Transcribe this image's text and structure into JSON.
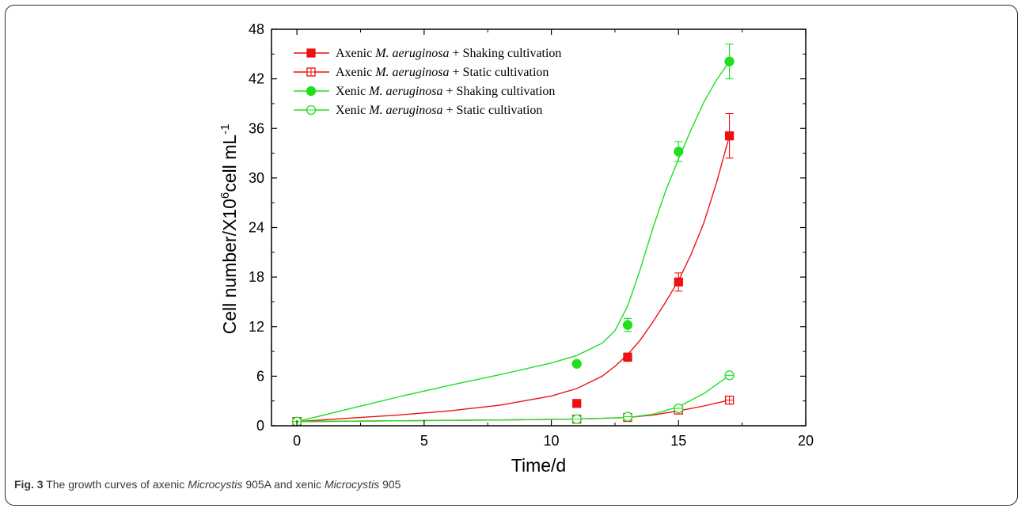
{
  "caption": {
    "fig_label": "Fig. 3",
    "text_1": "The growth curves of axenic",
    "italic_1": "Microcystis",
    "text_2": "905A and xenic",
    "italic_2": "Microcystis",
    "text_3": "905"
  },
  "chart_data": {
    "type": "scatter",
    "xlabel": "Time/d",
    "ylabel": "Cell number/X10",
    "ylabel_sup1": "6",
    "ylabel_unit": "cell mL",
    "ylabel_sup2": "-1",
    "xlim": [
      -1,
      20
    ],
    "ylim": [
      0,
      48
    ],
    "xticks": [
      0,
      5,
      10,
      15,
      20
    ],
    "yticks": [
      0,
      6,
      12,
      18,
      24,
      30,
      36,
      42,
      48
    ],
    "grid": false,
    "legend_position": "top-left",
    "series": [
      {
        "name_prefix": "Axenic ",
        "name_italic": "M. aeruginosa",
        "name_suffix": " + Shaking cultivation",
        "color": "#ee1111",
        "marker": "square-filled",
        "x": [
          0,
          11,
          13,
          15,
          17
        ],
        "y": [
          0.5,
          2.7,
          8.3,
          17.4,
          35.1
        ],
        "error": [
          0.1,
          0.2,
          0.5,
          1.1,
          2.7
        ],
        "curve": [
          [
            0,
            0.5
          ],
          [
            2,
            0.9
          ],
          [
            4,
            1.3
          ],
          [
            6,
            1.8
          ],
          [
            8,
            2.5
          ],
          [
            10,
            3.6
          ],
          [
            11,
            4.5
          ],
          [
            12,
            6.0
          ],
          [
            12.5,
            7.2
          ],
          [
            13,
            8.6
          ],
          [
            13.5,
            10.4
          ],
          [
            14,
            12.6
          ],
          [
            14.5,
            15.0
          ],
          [
            15,
            17.6
          ],
          [
            15.5,
            20.8
          ],
          [
            16,
            24.6
          ],
          [
            16.5,
            29.5
          ],
          [
            17,
            35.1
          ]
        ]
      },
      {
        "name_prefix": "Axenic ",
        "name_italic": "M. aeruginosa",
        "name_suffix": " + Static cultivation",
        "color": "#ee1111",
        "marker": "square-open",
        "x": [
          0,
          11,
          13,
          15,
          17
        ],
        "y": [
          0.5,
          0.8,
          1.0,
          1.9,
          3.1
        ],
        "error": [
          0.1,
          0.1,
          0.1,
          0.2,
          0.3
        ],
        "curve": [
          [
            0,
            0.5
          ],
          [
            4,
            0.6
          ],
          [
            8,
            0.7
          ],
          [
            11,
            0.8
          ],
          [
            13,
            1.0
          ],
          [
            14,
            1.3
          ],
          [
            15,
            1.8
          ],
          [
            16,
            2.4
          ],
          [
            17,
            3.1
          ]
        ]
      },
      {
        "name_prefix": "Xenic ",
        "name_italic": "M. aeruginosa",
        "name_suffix": " + Shaking cultivation",
        "color": "#1ee01e",
        "marker": "circle-filled",
        "x": [
          0,
          11,
          13,
          15,
          17
        ],
        "y": [
          0.5,
          7.5,
          12.2,
          33.2,
          44.1
        ],
        "error": [
          0.1,
          0.2,
          0.8,
          1.2,
          2.1
        ],
        "curve": [
          [
            0,
            0.5
          ],
          [
            2,
            2.0
          ],
          [
            4,
            3.5
          ],
          [
            6,
            4.9
          ],
          [
            8,
            6.2
          ],
          [
            10,
            7.6
          ],
          [
            11,
            8.5
          ],
          [
            12,
            10.0
          ],
          [
            12.5,
            11.5
          ],
          [
            13,
            14.5
          ],
          [
            13.5,
            19.0
          ],
          [
            14,
            24.0
          ],
          [
            14.5,
            28.5
          ],
          [
            15,
            32.3
          ],
          [
            15.5,
            35.9
          ],
          [
            16,
            39.2
          ],
          [
            16.5,
            41.9
          ],
          [
            17,
            44.1
          ]
        ]
      },
      {
        "name_prefix": "Xenic ",
        "name_italic": "M. aeruginosa",
        "name_suffix": " + Static cultivation",
        "color": "#1ee01e",
        "marker": "circle-open",
        "x": [
          0,
          11,
          13,
          15,
          17
        ],
        "y": [
          0.5,
          0.8,
          1.1,
          2.1,
          6.1
        ],
        "error": [
          0.1,
          0.1,
          0.1,
          0.2,
          0.3
        ],
        "curve": [
          [
            0,
            0.5
          ],
          [
            4,
            0.6
          ],
          [
            8,
            0.7
          ],
          [
            11,
            0.8
          ],
          [
            13,
            1.0
          ],
          [
            14,
            1.4
          ],
          [
            15,
            2.3
          ],
          [
            16,
            3.9
          ],
          [
            17,
            6.1
          ]
        ]
      }
    ]
  }
}
